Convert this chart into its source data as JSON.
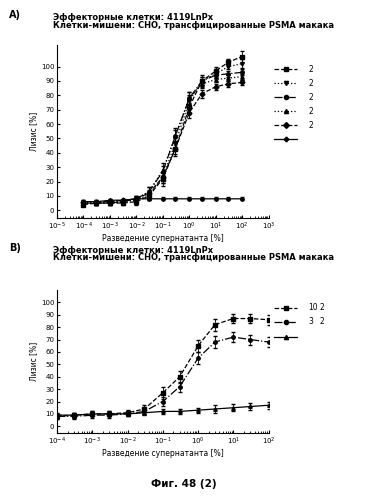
{
  "title_A_line1": "Эффекторные клетки: 4119LnPx",
  "title_A_line2": "Клетки-мишени: CHO, трансфицированные PSMA макака",
  "title_B_line1": "Эффекторные клетки: 4119LnPx",
  "title_B_line2": "Клетки-мишени: CHO, трансфицированные PSMA макака",
  "ylabel": "Лизис [%]",
  "xlabel": "Разведение супернатанта [%]",
  "footer": "Фиг. 48 (2)",
  "bg_color": "#ffffff",
  "panel_A": {
    "xlim_log": [
      -5,
      3
    ],
    "ylim": [
      -5,
      115
    ],
    "yticks": [
      0,
      10,
      20,
      30,
      40,
      50,
      60,
      70,
      80,
      90,
      100
    ],
    "series": [
      {
        "linestyle": "--",
        "marker": "s",
        "x": [
          0.0001,
          0.0003,
          0.001,
          0.003,
          0.01,
          0.03,
          0.1,
          0.3,
          1.0,
          3.0,
          10,
          30,
          100
        ],
        "y": [
          4,
          5,
          5,
          5,
          6,
          10,
          22,
          43,
          72,
          90,
          97,
          103,
          107
        ],
        "yerr": [
          1,
          1,
          1,
          1,
          2,
          3,
          5,
          5,
          5,
          4,
          3,
          2,
          4
        ]
      },
      {
        "linestyle": ":",
        "marker": "v",
        "x": [
          0.0001,
          0.0003,
          0.001,
          0.003,
          0.01,
          0.03,
          0.1,
          0.3,
          1.0,
          3.0,
          10,
          30,
          100
        ],
        "y": [
          5,
          5,
          5,
          6,
          7,
          11,
          23,
          47,
          76,
          90,
          95,
          100,
          102
        ],
        "yerr": [
          1,
          1,
          1,
          1,
          2,
          2,
          4,
          4,
          4,
          3,
          3,
          2,
          3
        ]
      },
      {
        "linestyle": "-.",
        "marker": "o",
        "x": [
          0.0001,
          0.0003,
          0.001,
          0.003,
          0.01,
          0.03,
          0.1,
          0.3,
          1.0,
          3.0,
          10,
          30,
          100
        ],
        "y": [
          5,
          5,
          5,
          6,
          8,
          13,
          27,
          52,
          78,
          90,
          94,
          95,
          96
        ],
        "yerr": [
          1,
          1,
          1,
          1,
          2,
          3,
          4,
          4,
          4,
          3,
          2,
          2,
          2
        ]
      },
      {
        "linestyle": ":",
        "marker": "^",
        "x": [
          0.0001,
          0.0003,
          0.001,
          0.003,
          0.01,
          0.03,
          0.1,
          0.3,
          1.0,
          3.0,
          10,
          30,
          100
        ],
        "y": [
          5,
          5,
          6,
          6,
          8,
          13,
          28,
          52,
          78,
          88,
          91,
          92,
          93
        ],
        "yerr": [
          1,
          1,
          1,
          1,
          2,
          3,
          5,
          5,
          4,
          3,
          2,
          2,
          2
        ]
      },
      {
        "linestyle": "--",
        "marker": "D",
        "x": [
          0.0001,
          0.0003,
          0.001,
          0.003,
          0.01,
          0.03,
          0.1,
          0.3,
          1.0,
          3.0,
          10,
          30,
          100
        ],
        "y": [
          6,
          6,
          6,
          7,
          8,
          12,
          23,
          43,
          68,
          81,
          86,
          88,
          89
        ],
        "yerr": [
          1,
          1,
          1,
          1,
          2,
          2,
          4,
          4,
          4,
          3,
          2,
          2,
          2
        ]
      },
      {
        "linestyle": "-",
        "marker": "P",
        "x": [
          0.0001,
          0.0003,
          0.001,
          0.003,
          0.01,
          0.03,
          0.1,
          0.3,
          1.0,
          3.0,
          10,
          30,
          100
        ],
        "y": [
          6,
          6,
          7,
          7,
          8,
          8,
          8,
          8,
          8,
          8,
          8,
          8,
          8
        ],
        "yerr": [
          1,
          1,
          1,
          1,
          1,
          1,
          1,
          1,
          1,
          1,
          1,
          1,
          1
        ]
      }
    ],
    "legend_nums": [
      "2",
      "2",
      "2",
      "2",
      "2",
      ""
    ]
  },
  "panel_B": {
    "xlim_log": [
      -4,
      2
    ],
    "ylim": [
      -5,
      110
    ],
    "yticks": [
      0,
      10,
      20,
      30,
      40,
      50,
      60,
      70,
      80,
      90,
      100
    ],
    "series": [
      {
        "linestyle": "--",
        "marker": "s",
        "x": [
          0.0001,
          0.0003,
          0.001,
          0.003,
          0.01,
          0.03,
          0.1,
          0.3,
          1.0,
          3.0,
          10,
          30,
          100
        ],
        "y": [
          8,
          9,
          10,
          10,
          11,
          14,
          27,
          40,
          65,
          82,
          87,
          87,
          86
        ],
        "yerr": [
          2,
          2,
          2,
          2,
          2,
          3,
          5,
          5,
          5,
          5,
          4,
          4,
          4
        ]
      },
      {
        "linestyle": "-.",
        "marker": "o",
        "x": [
          0.0001,
          0.0003,
          0.001,
          0.003,
          0.01,
          0.03,
          0.1,
          0.3,
          1.0,
          3.0,
          10,
          30,
          100
        ],
        "y": [
          8,
          8,
          9,
          9,
          10,
          12,
          20,
          32,
          55,
          68,
          72,
          70,
          68
        ],
        "yerr": [
          2,
          2,
          2,
          2,
          2,
          2,
          4,
          4,
          5,
          5,
          4,
          4,
          4
        ]
      },
      {
        "linestyle": "-",
        "marker": "^",
        "x": [
          0.0001,
          0.0003,
          0.001,
          0.003,
          0.01,
          0.03,
          0.1,
          0.3,
          1.0,
          3.0,
          10,
          30,
          100
        ],
        "y": [
          9,
          9,
          10,
          10,
          10,
          11,
          12,
          12,
          13,
          14,
          15,
          16,
          17
        ],
        "yerr": [
          2,
          2,
          2,
          2,
          2,
          2,
          2,
          2,
          2,
          3,
          3,
          3,
          3
        ]
      }
    ],
    "legend_nums1": [
      "10",
      "3",
      ""
    ],
    "legend_nums2": [
      "2",
      "2",
      ""
    ]
  }
}
